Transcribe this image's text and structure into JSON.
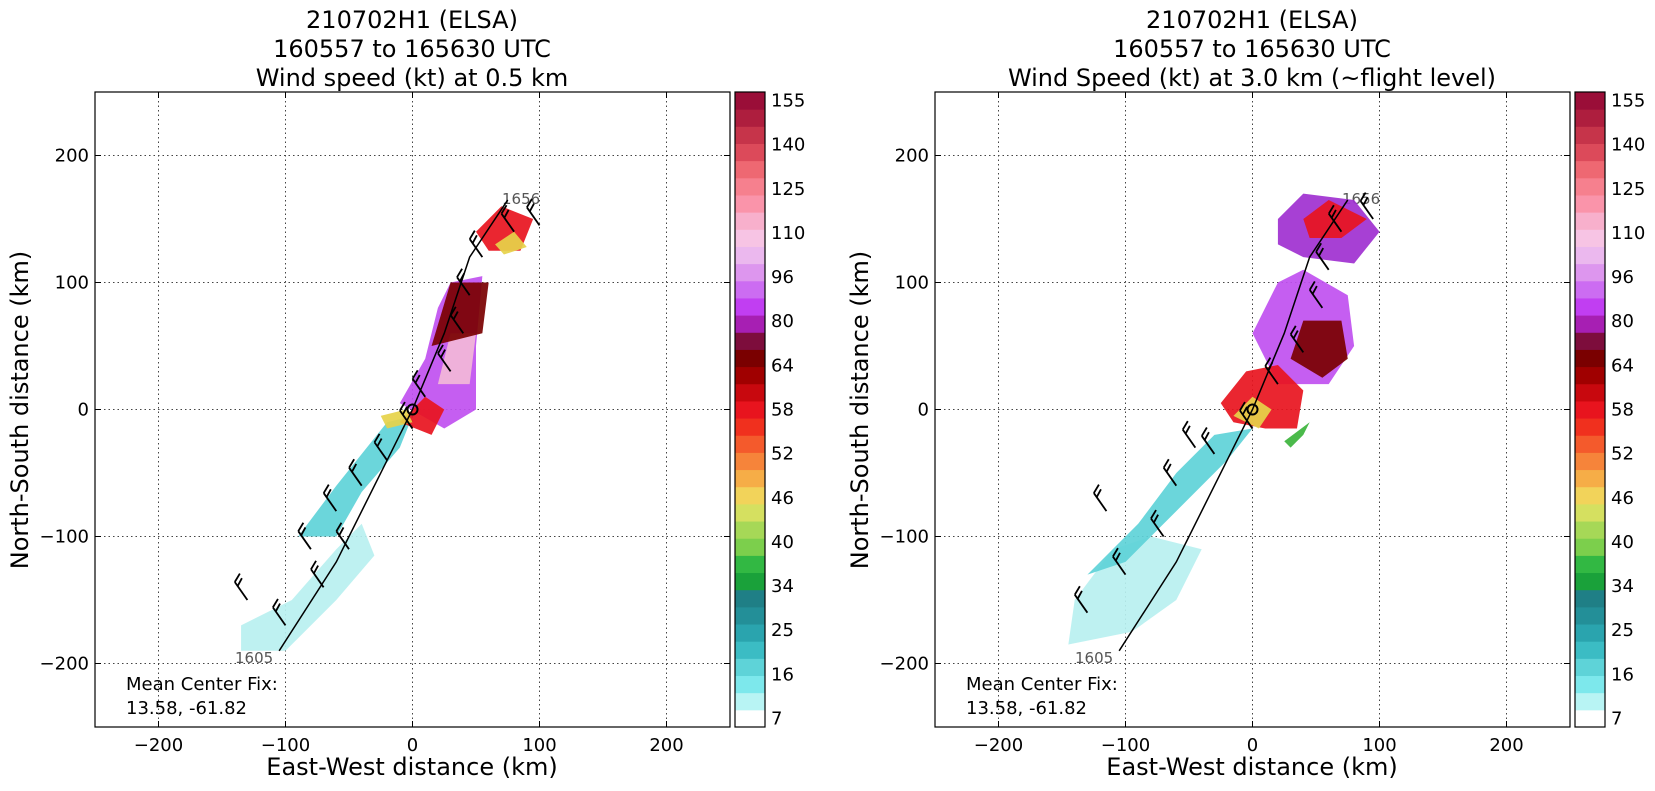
{
  "colors": {
    "cyan_light": "#b8f0f0",
    "cyan": "#5ed3d8",
    "teal": "#2a98a0",
    "green": "#3cb43c",
    "yellow": "#e6d24a",
    "orange": "#f08a30",
    "red": "#e8141e",
    "dark_red": "#7a0000",
    "purple": "#a030d0",
    "violet": "#c050f0",
    "pink": "#f2b8d8",
    "barb": "#000000",
    "endpoint_label": "#555555"
  },
  "colorbar": {
    "tick_labels": [
      "7",
      "16",
      "25",
      "34",
      "40",
      "46",
      "52",
      "58",
      "64",
      "80",
      "96",
      "110",
      "125",
      "140",
      "155"
    ],
    "colors": [
      "#ffffff",
      "#b8f4f4",
      "#7de8ec",
      "#5ed3d8",
      "#3bbcc4",
      "#2aa4ae",
      "#238f98",
      "#1f7f86",
      "#1aa13a",
      "#32b843",
      "#7ccf4c",
      "#a6d857",
      "#d5e060",
      "#f2d35a",
      "#f6ad47",
      "#f6843a",
      "#f45a2c",
      "#f0301e",
      "#e8141e",
      "#c8080e",
      "#a00000",
      "#7a0000",
      "#7d0d3c",
      "#a71fb3",
      "#c13ef2",
      "#cc6cf2",
      "#dd96ee",
      "#ebb8ee",
      "#f7c4e4",
      "#f8b0cc",
      "#fa94aa",
      "#f6808e",
      "#ee6872",
      "#dc4a5a",
      "#c6344a",
      "#ae1e3e",
      "#9a0e38"
    ]
  },
  "chart_data": [
    {
      "type": "heatmap",
      "title_lines": [
        "210702H1 (ELSA)",
        "160557 to 165630 UTC",
        "Wind speed (kt) at 0.5 km"
      ],
      "xlabel": "East-West distance (km)",
      "ylabel": "North-South distance (km)",
      "xlim": [
        -250,
        250
      ],
      "ylim": [
        -250,
        250
      ],
      "xticks": [
        -200,
        -100,
        0,
        100,
        200
      ],
      "yticks": [
        -200,
        -100,
        0,
        100,
        200
      ],
      "grid": true,
      "annotation_lines": [
        "Mean Center Fix:",
        "13.58, -61.82"
      ],
      "track_start_label": "1605",
      "track_end_label": "1656",
      "track": [
        [
          -105,
          -190
        ],
        [
          -60,
          -120
        ],
        [
          -30,
          -60
        ],
        [
          0,
          0
        ],
        [
          25,
          60
        ],
        [
          45,
          120
        ],
        [
          75,
          165
        ]
      ],
      "wind_regions": [
        {
          "band": "cyan_light",
          "points": [
            [
              -135,
              -170
            ],
            [
              -95,
              -150
            ],
            [
              -60,
              -110
            ],
            [
              -40,
              -90
            ],
            [
              -30,
              -115
            ],
            [
              -60,
              -150
            ],
            [
              -100,
              -190
            ],
            [
              -135,
              -190
            ]
          ]
        },
        {
          "band": "cyan",
          "points": [
            [
              -90,
              -100
            ],
            [
              -60,
              -60
            ],
            [
              -40,
              -35
            ],
            [
              -20,
              -10
            ],
            [
              0,
              -5
            ],
            [
              -10,
              -30
            ],
            [
              -40,
              -65
            ],
            [
              -60,
              -100
            ]
          ]
        },
        {
          "band": "violet",
          "points": [
            [
              -10,
              5
            ],
            [
              10,
              40
            ],
            [
              20,
              80
            ],
            [
              30,
              100
            ],
            [
              55,
              105
            ],
            [
              50,
              50
            ],
            [
              50,
              0
            ],
            [
              25,
              -15
            ]
          ]
        },
        {
          "band": "pink",
          "points": [
            [
              20,
              20
            ],
            [
              30,
              60
            ],
            [
              50,
              60
            ],
            [
              45,
              20
            ]
          ]
        },
        {
          "band": "dark_red",
          "points": [
            [
              15,
              50
            ],
            [
              30,
              100
            ],
            [
              60,
              100
            ],
            [
              55,
              60
            ]
          ]
        },
        {
          "band": "red",
          "points": [
            [
              -10,
              -10
            ],
            [
              10,
              10
            ],
            [
              25,
              0
            ],
            [
              15,
              -20
            ]
          ]
        },
        {
          "band": "yellow",
          "points": [
            [
              -25,
              -5
            ],
            [
              -5,
              0
            ],
            [
              0,
              -10
            ],
            [
              -20,
              -15
            ]
          ]
        },
        {
          "band": "red",
          "points": [
            [
              50,
              140
            ],
            [
              70,
              160
            ],
            [
              95,
              150
            ],
            [
              85,
              125
            ],
            [
              60,
              125
            ]
          ]
        },
        {
          "band": "yellow",
          "points": [
            [
              65,
              130
            ],
            [
              80,
              140
            ],
            [
              90,
              128
            ],
            [
              72,
              122
            ]
          ]
        }
      ],
      "barbs": [
        [
          -100,
          -170
        ],
        [
          -70,
          -140
        ],
        [
          -50,
          -110
        ],
        [
          -60,
          -80
        ],
        [
          -40,
          -60
        ],
        [
          -20,
          -40
        ],
        [
          0,
          -15
        ],
        [
          10,
          10
        ],
        [
          30,
          30
        ],
        [
          40,
          60
        ],
        [
          45,
          90
        ],
        [
          55,
          120
        ],
        [
          80,
          140
        ],
        [
          100,
          145
        ],
        [
          -130,
          -150
        ],
        [
          -80,
          -110
        ]
      ]
    },
    {
      "type": "heatmap",
      "title_lines": [
        "210702H1 (ELSA)",
        "160557 to 165630 UTC",
        "Wind Speed (kt) at 3.0 km (~flight level)"
      ],
      "xlabel": "East-West distance (km)",
      "ylabel": "North-South distance (km)",
      "xlim": [
        -250,
        250
      ],
      "ylim": [
        -250,
        250
      ],
      "xticks": [
        -200,
        -100,
        0,
        100,
        200
      ],
      "yticks": [
        -200,
        -100,
        0,
        100,
        200
      ],
      "grid": true,
      "annotation_lines": [
        "Mean Center Fix:",
        "13.58, -61.82"
      ],
      "track_start_label": "1605",
      "track_end_label": "1656",
      "track": [
        [
          -105,
          -190
        ],
        [
          -60,
          -120
        ],
        [
          -30,
          -60
        ],
        [
          0,
          0
        ],
        [
          25,
          60
        ],
        [
          45,
          120
        ],
        [
          75,
          165
        ]
      ],
      "wind_regions": [
        {
          "band": "cyan_light",
          "points": [
            [
              -145,
              -185
            ],
            [
              -95,
              -175
            ],
            [
              -60,
              -150
            ],
            [
              -40,
              -110
            ],
            [
              -80,
              -100
            ],
            [
              -110,
              -110
            ],
            [
              -140,
              -150
            ]
          ]
        },
        {
          "band": "cyan",
          "points": [
            [
              -130,
              -130
            ],
            [
              -90,
              -90
            ],
            [
              -60,
              -50
            ],
            [
              -30,
              -20
            ],
            [
              0,
              -15
            ],
            [
              -20,
              -40
            ],
            [
              -60,
              -80
            ],
            [
              -100,
              -120
            ]
          ]
        },
        {
          "band": "violet",
          "points": [
            [
              0,
              60
            ],
            [
              20,
              100
            ],
            [
              40,
              110
            ],
            [
              75,
              90
            ],
            [
              80,
              50
            ],
            [
              60,
              20
            ],
            [
              20,
              20
            ]
          ]
        },
        {
          "band": "purple",
          "points": [
            [
              20,
              150
            ],
            [
              40,
              170
            ],
            [
              80,
              165
            ],
            [
              100,
              140
            ],
            [
              80,
              115
            ],
            [
              40,
              120
            ],
            [
              20,
              130
            ]
          ]
        },
        {
          "band": "dark_red",
          "points": [
            [
              30,
              40
            ],
            [
              40,
              70
            ],
            [
              70,
              70
            ],
            [
              75,
              40
            ],
            [
              55,
              25
            ]
          ]
        },
        {
          "band": "red",
          "points": [
            [
              -25,
              5
            ],
            [
              -5,
              30
            ],
            [
              20,
              35
            ],
            [
              40,
              15
            ],
            [
              35,
              -15
            ],
            [
              10,
              -15
            ],
            [
              -15,
              -10
            ]
          ]
        },
        {
          "band": "yellow",
          "points": [
            [
              -15,
              -5
            ],
            [
              0,
              10
            ],
            [
              15,
              0
            ],
            [
              5,
              -15
            ]
          ]
        },
        {
          "band": "green",
          "points": [
            [
              25,
              -25
            ],
            [
              45,
              -10
            ],
            [
              40,
              -20
            ],
            [
              30,
              -30
            ]
          ]
        },
        {
          "band": "red",
          "points": [
            [
              40,
              150
            ],
            [
              60,
              165
            ],
            [
              90,
              150
            ],
            [
              70,
              135
            ],
            [
              45,
              135
            ]
          ]
        }
      ],
      "barbs": [
        [
          -130,
          -160
        ],
        [
          -100,
          -130
        ],
        [
          -70,
          -100
        ],
        [
          -60,
          -60
        ],
        [
          -30,
          -35
        ],
        [
          0,
          -15
        ],
        [
          20,
          20
        ],
        [
          40,
          45
        ],
        [
          55,
          80
        ],
        [
          60,
          110
        ],
        [
          70,
          140
        ],
        [
          95,
          150
        ],
        [
          -115,
          -80
        ],
        [
          -45,
          -30
        ]
      ]
    }
  ]
}
